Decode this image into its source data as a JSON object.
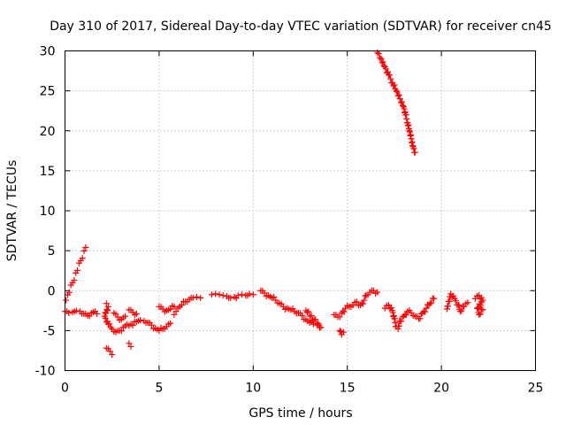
{
  "chart_data": {
    "type": "scatter",
    "title": "Day 310 of 2017, Sidereal Day-to-day VTEC variation (SDTVAR) for receiver cn45",
    "xlabel": "GPS time / hours",
    "ylabel": "SDTVAR / TECUs",
    "xlim": [
      0,
      25
    ],
    "ylim": [
      -10,
      30
    ],
    "xticks": [
      0,
      5,
      10,
      15,
      20,
      25
    ],
    "yticks": [
      -10,
      -5,
      0,
      5,
      10,
      15,
      20,
      25,
      30
    ],
    "grid": true,
    "marker": "+",
    "color": "#ff0000",
    "series": [
      {
        "name": "cn45",
        "segments": [
          {
            "points": [
              [
                0.0,
                -2.6
              ],
              [
                0.2,
                -2.8
              ],
              [
                0.4,
                -2.7
              ],
              [
                0.6,
                -2.5
              ],
              [
                0.8,
                -2.6
              ],
              [
                1.0,
                -2.9
              ],
              [
                1.2,
                -3.1
              ],
              [
                1.4,
                -2.8
              ],
              [
                1.6,
                -2.6
              ],
              [
                1.7,
                -2.9
              ]
            ]
          },
          {
            "points": [
              [
                0.05,
                -1.2
              ],
              [
                1.1,
                5.4
              ]
            ]
          },
          {
            "points": [
              [
                2.2,
                -1.6
              ],
              [
                2.3,
                -2.0
              ],
              [
                2.1,
                -3.2
              ],
              [
                2.3,
                -4.2
              ],
              [
                2.5,
                -4.8
              ],
              [
                2.7,
                -5.2
              ],
              [
                2.9,
                -5.0
              ],
              [
                3.1,
                -4.6
              ]
            ]
          },
          {
            "points": [
              [
                2.6,
                -2.8
              ],
              [
                2.8,
                -3.3
              ],
              [
                3.0,
                -3.6
              ],
              [
                3.2,
                -3.2
              ]
            ]
          },
          {
            "points": [
              [
                2.2,
                -7.2
              ],
              [
                2.4,
                -7.6
              ],
              [
                2.5,
                -8.0
              ]
            ]
          },
          {
            "points": [
              [
                3.4,
                -6.6
              ],
              [
                3.5,
                -7.0
              ]
            ]
          },
          {
            "points": [
              [
                3.4,
                -2.4
              ],
              [
                3.6,
                -2.7
              ],
              [
                3.8,
                -2.9
              ]
            ]
          },
          {
            "points": [
              [
                3.2,
                -4.4
              ],
              [
                3.5,
                -4.2
              ],
              [
                3.8,
                -3.9
              ],
              [
                4.0,
                -3.7
              ],
              [
                4.2,
                -3.8
              ],
              [
                4.4,
                -4.0
              ],
              [
                4.6,
                -4.3
              ],
              [
                4.8,
                -4.7
              ],
              [
                5.0,
                -5.0
              ],
              [
                5.2,
                -4.8
              ],
              [
                5.4,
                -4.5
              ],
              [
                5.6,
                -4.1
              ]
            ]
          },
          {
            "points": [
              [
                5.0,
                -2.0
              ],
              [
                5.2,
                -2.3
              ],
              [
                5.4,
                -2.5
              ],
              [
                5.6,
                -2.3
              ],
              [
                5.8,
                -2.0
              ]
            ]
          },
          {
            "points": [
              [
                5.8,
                -3.0
              ],
              [
                5.9,
                -2.6
              ],
              [
                6.0,
                -2.2
              ],
              [
                6.2,
                -1.8
              ],
              [
                6.4,
                -1.4
              ],
              [
                6.6,
                -1.1
              ],
              [
                6.8,
                -0.9
              ],
              [
                7.0,
                -0.8
              ],
              [
                7.2,
                -0.9
              ]
            ]
          },
          {
            "points": [
              [
                7.8,
                -0.5
              ],
              [
                8.0,
                -0.4
              ],
              [
                8.2,
                -0.5
              ],
              [
                8.4,
                -0.6
              ],
              [
                8.6,
                -0.7
              ],
              [
                8.8,
                -0.9
              ],
              [
                9.0,
                -0.8
              ],
              [
                9.2,
                -0.6
              ],
              [
                9.4,
                -0.5
              ],
              [
                9.6,
                -0.6
              ],
              [
                9.8,
                -0.4
              ],
              [
                10.0,
                -0.5
              ]
            ]
          },
          {
            "points": [
              [
                10.4,
                0.0
              ],
              [
                10.6,
                -0.3
              ],
              [
                10.8,
                -0.6
              ],
              [
                11.0,
                -0.9
              ],
              [
                11.2,
                -1.2
              ],
              [
                11.4,
                -1.6
              ],
              [
                11.6,
                -2.0
              ],
              [
                11.8,
                -2.2
              ],
              [
                12.0,
                -2.4
              ],
              [
                12.2,
                -2.6
              ],
              [
                12.4,
                -2.8
              ],
              [
                12.6,
                -3.1
              ],
              [
                12.8,
                -3.6
              ],
              [
                13.0,
                -4.0
              ],
              [
                13.2,
                -4.2
              ],
              [
                13.4,
                -4.3
              ],
              [
                13.6,
                -4.6
              ],
              [
                12.8,
                -2.5
              ]
            ]
          },
          {
            "points": [
              [
                14.3,
                -3.0
              ],
              [
                14.5,
                -3.3
              ],
              [
                14.7,
                -2.8
              ],
              [
                14.9,
                -2.2
              ],
              [
                15.1,
                -2.0
              ],
              [
                15.3,
                -1.8
              ],
              [
                15.5,
                -1.4
              ],
              [
                15.7,
                -1.8
              ],
              [
                15.9,
                -1.2
              ],
              [
                16.0,
                -0.6
              ],
              [
                16.2,
                -0.2
              ],
              [
                16.4,
                0.0
              ],
              [
                16.6,
                -0.2
              ]
            ]
          },
          {
            "points": [
              [
                14.6,
                -5.0
              ],
              [
                14.7,
                -5.5
              ],
              [
                14.8,
                -5.2
              ]
            ]
          },
          {
            "points": [
              [
                16.6,
                29.8
              ],
              [
                16.8,
                29.0
              ],
              [
                17.0,
                28.0
              ],
              [
                17.2,
                27.0
              ],
              [
                17.4,
                26.0
              ],
              [
                17.6,
                25.0
              ],
              [
                17.8,
                24.0
              ],
              [
                18.0,
                23.0
              ],
              [
                18.1,
                22.0
              ],
              [
                18.2,
                21.0
              ],
              [
                18.3,
                20.0
              ],
              [
                18.4,
                19.0
              ],
              [
                18.5,
                18.0
              ],
              [
                18.6,
                17.3
              ]
            ]
          },
          {
            "points": [
              [
                17.0,
                -2.2
              ],
              [
                17.2,
                -1.8
              ],
              [
                17.4,
                -2.5
              ],
              [
                17.5,
                -3.5
              ],
              [
                17.6,
                -4.5
              ],
              [
                17.7,
                -4.8
              ],
              [
                17.8,
                -3.8
              ],
              [
                18.0,
                -3.2
              ],
              [
                18.2,
                -2.6
              ],
              [
                18.4,
                -2.8
              ],
              [
                18.6,
                -3.2
              ],
              [
                18.8,
                -3.5
              ],
              [
                19.0,
                -2.8
              ],
              [
                19.2,
                -2.2
              ],
              [
                19.4,
                -1.6
              ],
              [
                19.6,
                -1.0
              ]
            ]
          },
          {
            "points": [
              [
                20.3,
                -2.3
              ],
              [
                20.5,
                -0.4
              ],
              [
                20.7,
                -1.0
              ],
              [
                20.9,
                -1.8
              ],
              [
                21.0,
                -2.6
              ],
              [
                21.2,
                -2.0
              ],
              [
                21.4,
                -1.5
              ]
            ]
          },
          {
            "points": [
              [
                21.8,
                -1.0
              ],
              [
                22.0,
                -0.6
              ],
              [
                22.2,
                -1.2
              ],
              [
                21.9,
                -2.2
              ],
              [
                22.0,
                -3.0
              ],
              [
                22.2,
                -2.4
              ]
            ]
          }
        ]
      }
    ]
  }
}
